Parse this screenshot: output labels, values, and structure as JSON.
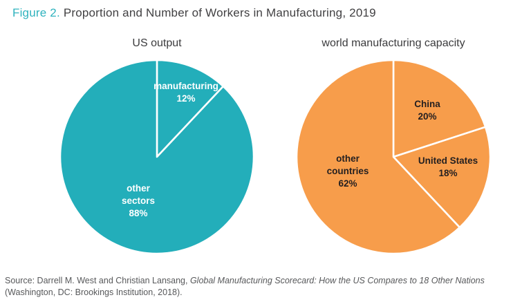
{
  "header": {
    "label": "Figure 2.",
    "title": " Proportion and Number of Workers in Manufacturing, 2019"
  },
  "source": {
    "prefix": "Source: Darrell M. West and Christian Lansang, ",
    "italic": "Global Manufacturing Scorecard: How the US Compares to 18 Other Nations",
    "suffix": " (Washington, DC: Brookings Institution, 2018)."
  },
  "colors": {
    "teal": "#23aeba",
    "orange": "#f79d4b",
    "figure_label_teal": "#2fb3be",
    "title_text": "#414042",
    "dark_label": "#231f20",
    "light_label": "#ffffff",
    "source_text": "#57585a",
    "divider": "#ffffff"
  },
  "chart_data": [
    {
      "type": "pie",
      "title": "US output",
      "color": "#23aeba",
      "label_color": "#ffffff",
      "start_angle_deg": 0,
      "direction": "clockwise",
      "slices": [
        {
          "label": "manufacturing",
          "value": 12,
          "pct_label": "12%"
        },
        {
          "label": "other sectors",
          "value": 88,
          "pct_label": "88%"
        }
      ]
    },
    {
      "type": "pie",
      "title": "world manufacturing capacity",
      "color": "#f79d4b",
      "label_color": "#231f20",
      "start_angle_deg": 0,
      "direction": "clockwise",
      "slices": [
        {
          "label": "China",
          "value": 20,
          "pct_label": "20%"
        },
        {
          "label": "United States",
          "value": 18,
          "pct_label": "18%"
        },
        {
          "label": "other countries",
          "value": 62,
          "pct_label": "62%"
        }
      ]
    }
  ]
}
